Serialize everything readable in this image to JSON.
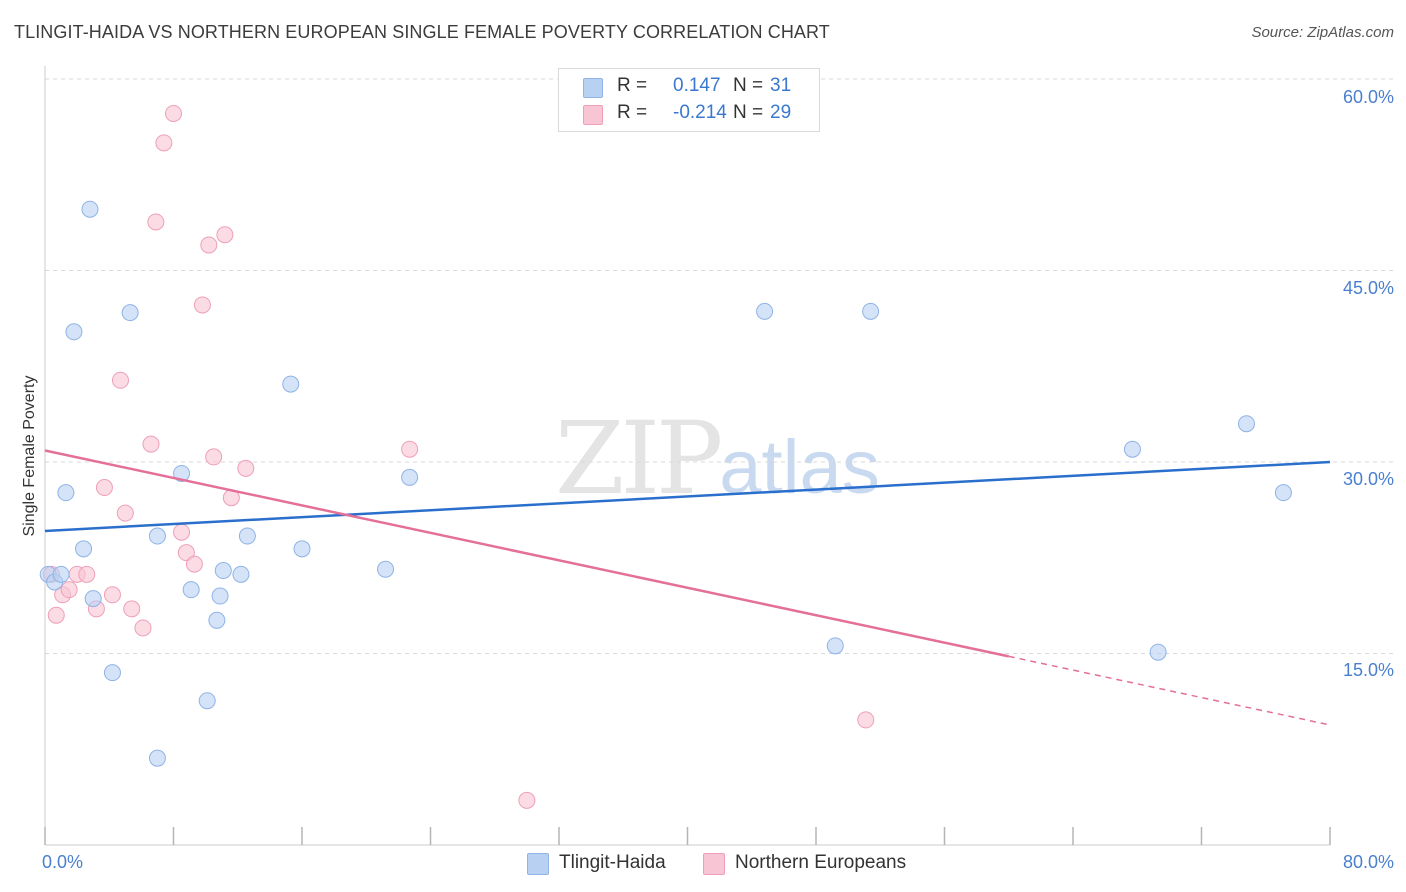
{
  "title": "TLINGIT-HAIDA VS NORTHERN EUROPEAN SINGLE FEMALE POVERTY CORRELATION CHART",
  "source": "Source: ZipAtlas.com",
  "watermark": {
    "zip": "ZIP",
    "atlas": "atlas"
  },
  "legend": {
    "r_label": "R =",
    "n_label": "N =",
    "series": [
      {
        "name": "Tlingit-Haida",
        "r": "0.147",
        "n": "31"
      },
      {
        "name": "Northern Europeans",
        "r": "-0.214",
        "n": "29"
      }
    ]
  },
  "colors": {
    "blue_fill": "#b8d1f2",
    "blue_stroke": "#8fb3e6",
    "blue_line": "#2a6fcc",
    "pink_fill": "#f8c5d4",
    "pink_stroke": "#ef9fb8",
    "pink_line": "#e46f98",
    "grid": "#d9d9d9",
    "tick_text": "#4a7fcf"
  },
  "chart_data": {
    "type": "scatter",
    "title": "TLINGIT-HAIDA VS NORTHERN EUROPEAN SINGLE FEMALE POVERTY CORRELATION CHART",
    "xlabel": "",
    "ylabel": "Single Female Poverty",
    "xlim": [
      0,
      80
    ],
    "ylim": [
      0,
      60
    ],
    "x_tick_labels": [
      "0.0%",
      "80.0%"
    ],
    "y_ticks": [
      15,
      30,
      45,
      60
    ],
    "y_tick_labels": [
      "15.0%",
      "30.0%",
      "45.0%",
      "60.0%"
    ],
    "series": [
      {
        "name": "Tlingit-Haida",
        "points": [
          [
            0.2,
            21.2
          ],
          [
            0.6,
            20.6
          ],
          [
            1.0,
            21.2
          ],
          [
            1.3,
            27.6
          ],
          [
            1.8,
            40.2
          ],
          [
            2.4,
            23.2
          ],
          [
            2.8,
            49.8
          ],
          [
            3.0,
            19.3
          ],
          [
            4.2,
            13.5
          ],
          [
            5.3,
            41.7
          ],
          [
            7.0,
            24.2
          ],
          [
            7.0,
            6.8
          ],
          [
            8.5,
            29.1
          ],
          [
            9.1,
            20.0
          ],
          [
            10.1,
            11.3
          ],
          [
            10.7,
            17.6
          ],
          [
            10.9,
            19.5
          ],
          [
            11.1,
            21.5
          ],
          [
            12.2,
            21.2
          ],
          [
            12.6,
            24.2
          ],
          [
            15.3,
            36.1
          ],
          [
            16.0,
            23.2
          ],
          [
            21.2,
            21.6
          ],
          [
            22.7,
            28.8
          ],
          [
            49.2,
            15.6
          ],
          [
            44.8,
            41.8
          ],
          [
            51.4,
            41.8
          ],
          [
            67.7,
            31.0
          ],
          [
            69.3,
            15.1
          ],
          [
            74.8,
            33.0
          ],
          [
            77.1,
            27.6
          ]
        ],
        "trend": {
          "x": [
            0,
            80
          ],
          "y": [
            24.6,
            30.0
          ]
        }
      },
      {
        "name": "Northern Europeans",
        "points": [
          [
            0.4,
            21.2
          ],
          [
            0.7,
            18.0
          ],
          [
            1.1,
            19.6
          ],
          [
            1.5,
            20.0
          ],
          [
            2.0,
            21.2
          ],
          [
            2.6,
            21.2
          ],
          [
            3.2,
            18.5
          ],
          [
            3.7,
            28.0
          ],
          [
            4.2,
            19.6
          ],
          [
            4.7,
            36.4
          ],
          [
            5.0,
            26.0
          ],
          [
            5.4,
            18.5
          ],
          [
            6.1,
            17.0
          ],
          [
            6.6,
            31.4
          ],
          [
            6.9,
            48.8
          ],
          [
            7.4,
            55.0
          ],
          [
            8.0,
            57.3
          ],
          [
            8.5,
            24.5
          ],
          [
            8.8,
            22.9
          ],
          [
            9.3,
            22.0
          ],
          [
            9.8,
            42.3
          ],
          [
            10.2,
            47.0
          ],
          [
            10.5,
            30.4
          ],
          [
            11.2,
            47.8
          ],
          [
            11.6,
            27.2
          ],
          [
            12.5,
            29.5
          ],
          [
            22.7,
            31.0
          ],
          [
            30.0,
            3.5
          ],
          [
            51.1,
            9.8
          ]
        ],
        "trend": {
          "x": [
            0,
            80
          ],
          "y": [
            30.9,
            9.4
          ]
        },
        "trend_solid_until_x": 60
      }
    ]
  }
}
